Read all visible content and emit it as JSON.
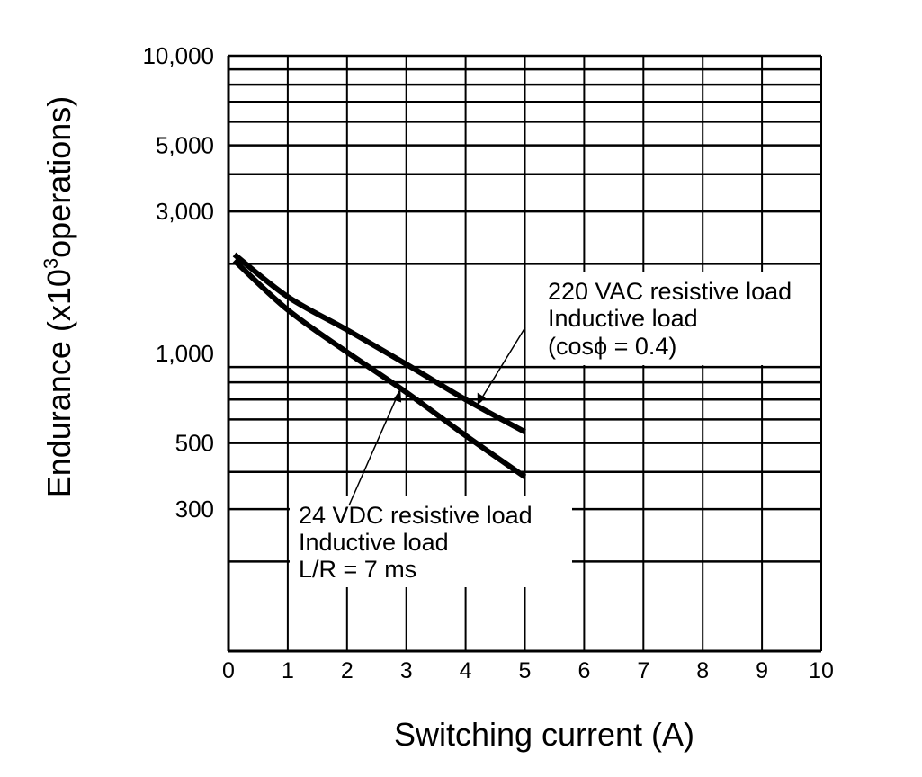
{
  "chart_data": {
    "type": "line",
    "title": "",
    "xlabel": "Switching current (A)",
    "ylabel": "Endurance (x10",
    "ylabel_sup": "3",
    "ylabel_rest": "operations)",
    "xlim": [
      0,
      10
    ],
    "ylim": [
      100,
      10000
    ],
    "yscale": "log",
    "grid": true,
    "x_ticks": [
      0,
      1,
      2,
      3,
      4,
      5,
      6,
      7,
      8,
      9,
      10
    ],
    "y_ticks": [
      {
        "value": 10000,
        "label": "10,000"
      },
      {
        "value": 5000,
        "label": "5,000"
      },
      {
        "value": 3000,
        "label": "3,000"
      },
      {
        "value": 1000,
        "label": "1,000"
      },
      {
        "value": 500,
        "label": "500"
      },
      {
        "value": 300,
        "label": "300"
      }
    ],
    "series": [
      {
        "x": [
          0.1,
          1,
          2,
          3,
          4,
          5
        ],
        "y": [
          2150,
          1550,
          1200,
          920,
          700,
          545
        ]
      },
      {
        "x": [
          0.1,
          1,
          2,
          3,
          4,
          5
        ],
        "y": [
          2050,
          1400,
          1010,
          740,
          530,
          385
        ]
      }
    ],
    "annotations": [
      {
        "lines": [
          "220 VAC resistive load",
          "Inductive load",
          "(cosϕ = 0.4)"
        ]
      },
      {
        "lines": [
          "24 VDC resistive load",
          "Inductive load",
          "L/R = 7 ms"
        ]
      }
    ]
  }
}
